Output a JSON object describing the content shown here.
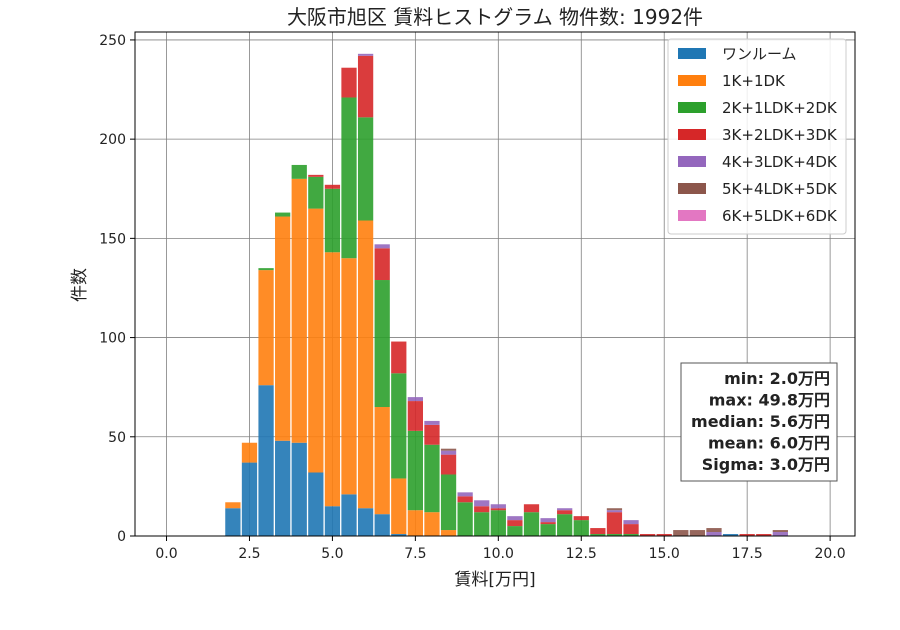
{
  "chart_data": {
    "type": "bar",
    "stacked": true,
    "title": "大阪市旭区 賃料ヒストグラム 物件数: 1992件",
    "xlabel": "賃料[万円]",
    "ylabel": "件数",
    "xlim": [
      -0.95,
      20.75
    ],
    "ylim": [
      0,
      254
    ],
    "xticks": [
      0.0,
      2.5,
      5.0,
      7.5,
      10.0,
      12.5,
      15.0,
      17.5,
      20.0
    ],
    "xtick_labels": [
      "0.0",
      "2.5",
      "5.0",
      "7.5",
      "10.0",
      "12.5",
      "15.0",
      "17.5",
      "20.0"
    ],
    "yticks": [
      0,
      50,
      100,
      150,
      200,
      250
    ],
    "ytick_labels": [
      "0",
      "50",
      "100",
      "150",
      "200",
      "250"
    ],
    "bin_width": 0.5,
    "bin_starts": [
      2.0,
      2.5,
      3.0,
      3.5,
      4.0,
      4.5,
      5.0,
      5.5,
      6.0,
      6.5,
      7.0,
      7.5,
      8.0,
      8.5,
      9.0,
      9.5,
      10.0,
      10.5,
      11.0,
      11.5,
      12.0,
      12.5,
      13.0,
      13.5,
      14.0,
      14.5,
      15.0,
      15.5,
      16.0,
      16.5,
      17.0,
      17.5,
      18.0,
      18.5
    ],
    "grid": true,
    "legend_position": "top-right",
    "series": [
      {
        "name": "ワンルーム",
        "color": "#1f77b4",
        "values": [
          14,
          37,
          76,
          48,
          47,
          32,
          15,
          21,
          14,
          11,
          1,
          0,
          0,
          0,
          0,
          0,
          0,
          0,
          0,
          0,
          0,
          0,
          0,
          0,
          0,
          0,
          0,
          0,
          0,
          0,
          1,
          0,
          0,
          0
        ]
      },
      {
        "name": "1K+1DK",
        "color": "#ff7f0e",
        "values": [
          3,
          10,
          58,
          113,
          133,
          133,
          128,
          119,
          145,
          54,
          28,
          13,
          12,
          3,
          0,
          0,
          0,
          0,
          0,
          0,
          0,
          0,
          0,
          0,
          0,
          0,
          0,
          0,
          0,
          0,
          0,
          0,
          0,
          0
        ]
      },
      {
        "name": "2K+1LDK+2DK",
        "color": "#2ca02c",
        "values": [
          0,
          0,
          1,
          2,
          7,
          16,
          32,
          81,
          52,
          64,
          53,
          40,
          34,
          28,
          17,
          12,
          13,
          5,
          12,
          6,
          11,
          8,
          1,
          1,
          1,
          0,
          0,
          0,
          0,
          0,
          0,
          0,
          0,
          0
        ]
      },
      {
        "name": "3K+2LDK+3DK",
        "color": "#d62728",
        "values": [
          0,
          0,
          0,
          0,
          0,
          1,
          2,
          15,
          31,
          16,
          16,
          15,
          10,
          10,
          3,
          3,
          1,
          3,
          4,
          1,
          2,
          2,
          3,
          11,
          5,
          1,
          1,
          0,
          0,
          0,
          0,
          1,
          1,
          0
        ]
      },
      {
        "name": "4K+3LDK+4DK",
        "color": "#9467bd",
        "values": [
          0,
          0,
          0,
          0,
          0,
          0,
          0,
          0,
          1,
          2,
          0,
          2,
          2,
          2,
          2,
          3,
          2,
          2,
          0,
          2,
          1,
          0,
          0,
          1,
          2,
          0,
          0,
          0,
          0,
          2,
          0,
          0,
          0,
          2
        ]
      },
      {
        "name": "5K+4LDK+5DK",
        "color": "#8c564b",
        "values": [
          0,
          0,
          0,
          0,
          0,
          0,
          0,
          0,
          0,
          0,
          0,
          0,
          0,
          1,
          0,
          0,
          0,
          0,
          0,
          0,
          0,
          0,
          0,
          1,
          0,
          0,
          0,
          3,
          3,
          2,
          0,
          0,
          0,
          1
        ]
      },
      {
        "name": "6K+5LDK+6DK",
        "color": "#e377c2",
        "values": [
          0,
          0,
          0,
          0,
          0,
          0,
          0,
          0,
          0,
          0,
          0,
          0,
          0,
          0,
          0,
          0,
          0,
          0,
          0,
          0,
          0,
          0,
          0,
          0,
          0,
          0,
          0,
          0,
          0,
          0,
          0,
          0,
          0,
          0
        ]
      }
    ],
    "stats": [
      "min: 2.0万円",
      "max: 49.8万円",
      "median: 5.6万円",
      "mean: 6.0万円",
      "Sigma: 3.0万円"
    ]
  }
}
